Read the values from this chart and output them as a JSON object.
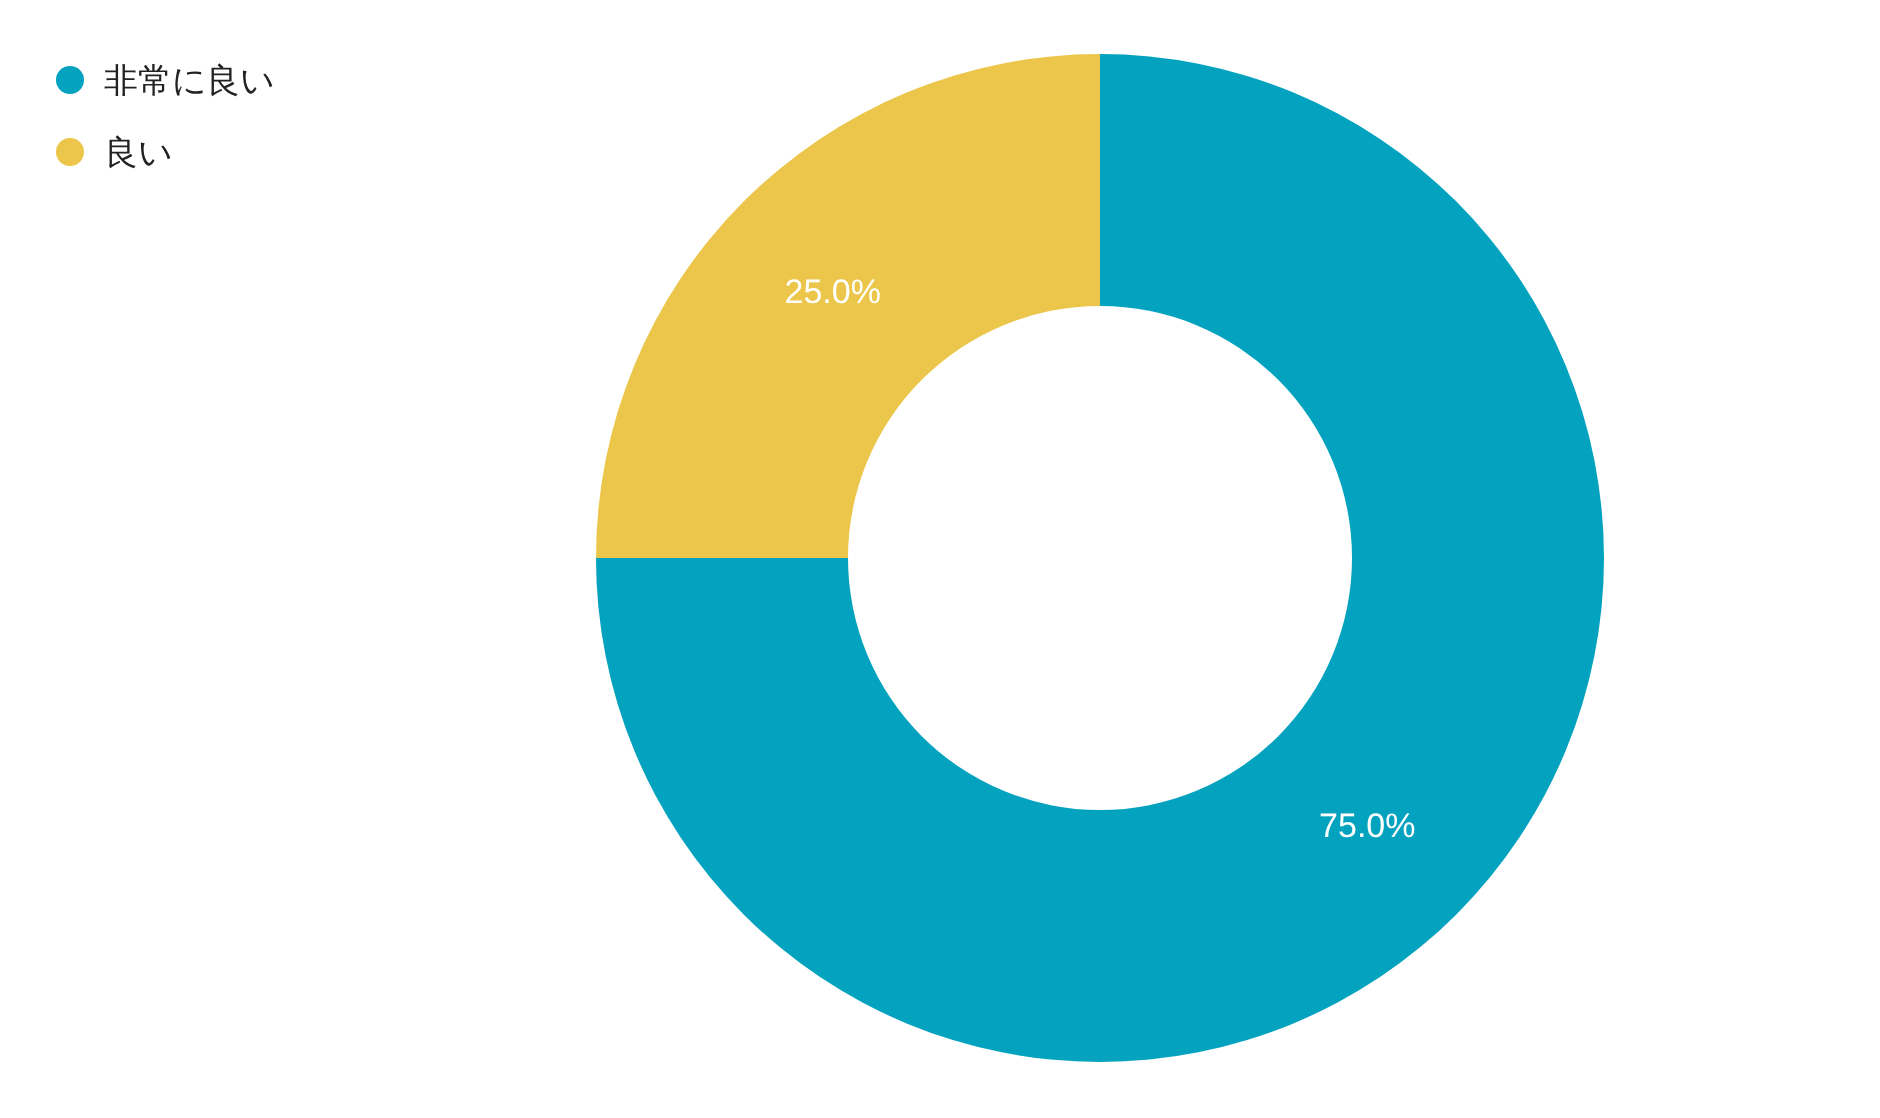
{
  "chart_data": {
    "type": "donut",
    "categories": [
      "非常に良い",
      "良い"
    ],
    "values": [
      75,
      25
    ],
    "colors": [
      "#03a2be",
      "#ecc64a"
    ],
    "value_labels": [
      "75.0%",
      "25.0%"
    ],
    "legend": "top left"
  }
}
